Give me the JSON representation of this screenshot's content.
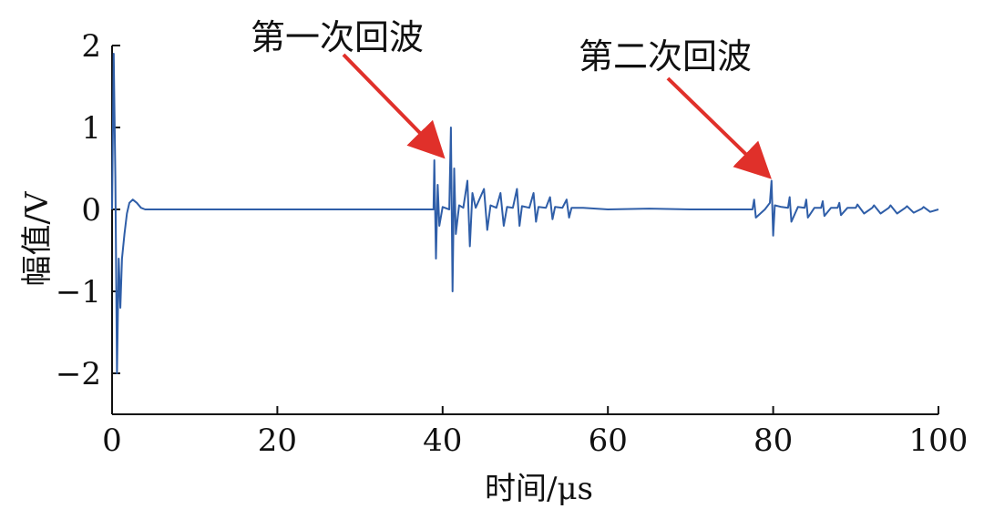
{
  "chart_data": {
    "type": "line",
    "xlabel": "时间/μs",
    "ylabel": "幅值/V",
    "xlim": [
      0,
      100
    ],
    "ylim": [
      -2.5,
      2
    ],
    "xticks": [
      0,
      20,
      40,
      60,
      80,
      100
    ],
    "yticks": [
      2,
      1,
      0,
      -1,
      -2
    ],
    "ytick_labels": [
      "2",
      "1",
      "0",
      "−1",
      "−2"
    ],
    "grid": false,
    "series_color": "#2f5ea8",
    "annotation_color": "#e0302a",
    "series": [
      {
        "x": [
          0,
          0.2,
          0.4,
          0.6,
          0.8,
          1.0,
          1.2,
          1.5,
          1.8,
          2.1,
          2.5,
          3,
          3.5,
          4,
          5,
          10,
          20,
          30,
          38.9,
          39,
          39.2,
          39.4,
          39.6,
          40,
          40.8,
          41,
          41.2,
          41.4,
          41.6,
          42,
          42.5,
          43,
          43.3,
          43.6,
          44,
          45,
          45.4,
          45.8,
          46.5,
          47,
          47.4,
          47.8,
          48.5,
          49,
          49.3,
          49.6,
          50.5,
          51,
          51.3,
          51.6,
          52.5,
          53,
          53.3,
          53.6,
          54.5,
          55,
          55.3,
          55.6,
          57,
          60,
          65,
          70,
          75,
          77.5,
          77.7,
          77.9,
          79,
          79.6,
          79.8,
          80,
          80.2,
          81,
          81.8,
          82,
          82.2,
          83,
          83.8,
          84,
          84.2,
          85,
          85.8,
          86,
          86.2,
          87,
          87.8,
          88,
          88.2,
          89,
          90,
          90.2,
          91,
          92,
          92.2,
          93,
          94,
          94.2,
          95,
          96,
          96.2,
          97,
          98,
          98.2,
          99,
          100
        ],
        "values": [
          0,
          1.9,
          0.4,
          -2.0,
          -0.6,
          -1.2,
          -0.6,
          -0.3,
          -0.05,
          0.08,
          0.12,
          0.08,
          0.02,
          0,
          0,
          0,
          0,
          0,
          0,
          0.6,
          -0.6,
          0.3,
          -0.2,
          0.03,
          0,
          1.0,
          -1.0,
          0.5,
          -0.3,
          0.05,
          0.02,
          0.35,
          -0.45,
          0.2,
          0.02,
          0.25,
          -0.25,
          0.05,
          0.02,
          0.2,
          -0.2,
          0.03,
          0.02,
          0.25,
          -0.2,
          0.04,
          0.02,
          0.2,
          -0.15,
          0.03,
          0.02,
          0.15,
          -0.12,
          0.03,
          0.02,
          0.12,
          -0.1,
          0.02,
          0.02,
          0,
          0.01,
          0,
          0,
          0,
          0.12,
          -0.1,
          0,
          0.08,
          0.35,
          -0.32,
          0.05,
          0.03,
          0.02,
          0.15,
          -0.15,
          0.03,
          0.02,
          0.12,
          -0.1,
          0.02,
          0.02,
          0.1,
          -0.08,
          0.02,
          0.02,
          0.08,
          -0.07,
          0.02,
          0.02,
          0.06,
          -0.05,
          0.02,
          0.05,
          -0.05,
          0.02,
          0.05,
          -0.05,
          0.02,
          0.04,
          -0.04,
          0.01,
          0.03,
          -0.03,
          0
        ]
      }
    ],
    "annotations": [
      {
        "text": "第一次回波",
        "target": [
          40.0,
          0.65
        ]
      },
      {
        "text": "第二次回波",
        "target": [
          79.5,
          0.4
        ]
      }
    ]
  }
}
